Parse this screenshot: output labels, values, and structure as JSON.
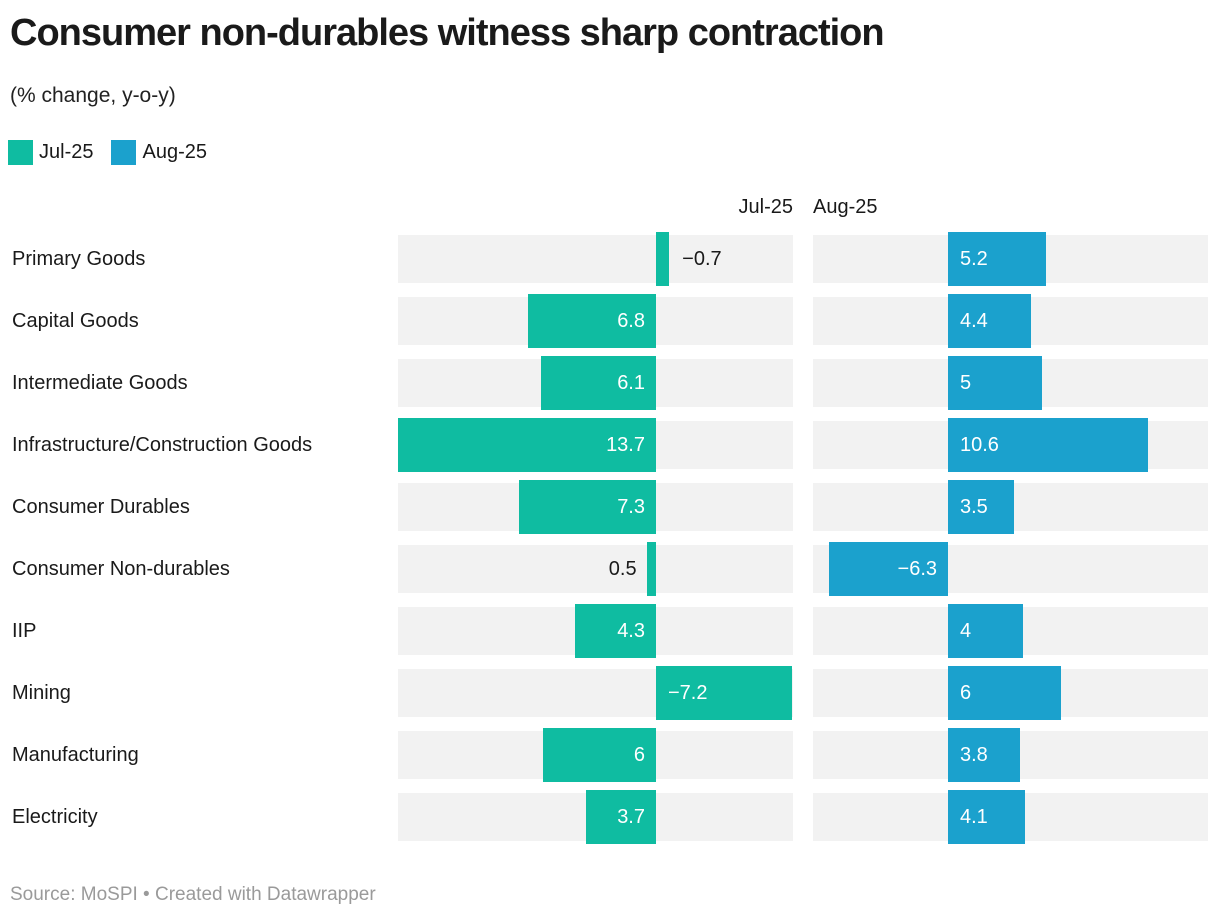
{
  "title": "Consumer non-durables witness sharp contraction",
  "subtitle": "(% change, y-o-y)",
  "legend": {
    "items": [
      {
        "label": "Jul-25",
        "color": "#0fbca1"
      },
      {
        "label": "Aug-25",
        "color": "#1ba1cd"
      }
    ]
  },
  "column_headers": [
    "Jul-25",
    "Aug-25"
  ],
  "footer": "Source: MoSPI • Created with Datawrapper",
  "colors": {
    "jul_bar": "#0fbca1",
    "aug_bar": "#1ba1cd",
    "row_band": "#f2f2f2",
    "text": "#191919",
    "value_label_inside": "#ffffff",
    "value_label_outside": "#1a1a1a",
    "footer_text": "#9a9a9a"
  },
  "chart_data": {
    "type": "bar",
    "orientation": "horizontal, two mirrored value columns per category",
    "title": "Consumer non-durables witness sharp contraction",
    "subtitle": "(% change, y-o-y)",
    "categories": [
      "Primary Goods",
      "Capital Goods",
      "Intermediate Goods",
      "Infrastructure/Construction Goods",
      "Consumer Durables",
      "Consumer Non-durables",
      "IIP",
      "Mining",
      "Manufacturing",
      "Electricity"
    ],
    "series": [
      {
        "name": "Jul-25",
        "color": "#0fbca1",
        "positive_direction": "left",
        "values": [
          -0.7,
          6.8,
          6.1,
          13.7,
          7.3,
          0.5,
          4.3,
          -7.2,
          6,
          3.7
        ]
      },
      {
        "name": "Aug-25",
        "color": "#1ba1cd",
        "positive_direction": "right",
        "values": [
          5.2,
          4.4,
          5,
          10.6,
          3.5,
          -6.3,
          4,
          6,
          3.8,
          4.1
        ]
      }
    ],
    "xlim": [
      -7.3,
      13.8
    ],
    "grid": false,
    "legend_position": "top-left",
    "value_labels": true,
    "source": "Source: MoSPI • Created with Datawrapper"
  }
}
